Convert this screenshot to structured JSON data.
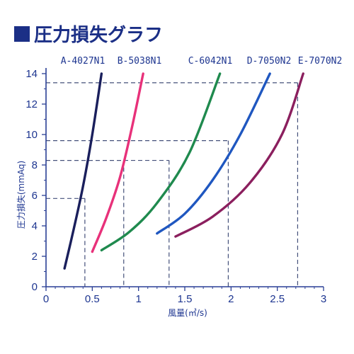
{
  "chart_data": {
    "type": "line",
    "title": "圧力損失グラフ",
    "xlabel": "風量(㎥/s)",
    "ylabel": "圧力損失(mmAq)",
    "xlim": [
      0,
      3
    ],
    "ylim": [
      0,
      14
    ],
    "x_ticks": [
      "0",
      "0.5",
      "1",
      "1.5",
      "2",
      "2.5",
      "3"
    ],
    "y_ticks": [
      "0",
      "2",
      "4",
      "6",
      "8",
      "10",
      "12",
      "14"
    ],
    "grid": false,
    "colors": {
      "title_square": "#1b2f86",
      "axis": "#2a3f95",
      "text": "#1d3590",
      "reference_lines": "#44507a"
    },
    "series": [
      {
        "name": "A-4027N1",
        "color": "#1a1f5c",
        "points": [
          [
            0.2,
            1.2
          ],
          [
            0.3,
            3.8
          ],
          [
            0.4,
            6.6
          ],
          [
            0.5,
            10.0
          ],
          [
            0.6,
            14.0
          ]
        ]
      },
      {
        "name": "B-5038N1",
        "color": "#e8317a",
        "points": [
          [
            0.5,
            2.3
          ],
          [
            0.65,
            4.5
          ],
          [
            0.8,
            7.2
          ],
          [
            0.93,
            10.5
          ],
          [
            1.05,
            14.0
          ]
        ]
      },
      {
        "name": "C-6042N1",
        "color": "#1f8a4e",
        "points": [
          [
            0.6,
            2.4
          ],
          [
            0.9,
            3.6
          ],
          [
            1.2,
            5.5
          ],
          [
            1.55,
            8.8
          ],
          [
            1.88,
            14.0
          ]
        ]
      },
      {
        "name": "D-7050N2",
        "color": "#1f57c0",
        "points": [
          [
            1.2,
            3.5
          ],
          [
            1.5,
            4.8
          ],
          [
            1.8,
            7.0
          ],
          [
            2.1,
            10.0
          ],
          [
            2.42,
            14.0
          ]
        ]
      },
      {
        "name": "E-7070N2",
        "color": "#8b1f5e",
        "points": [
          [
            1.4,
            3.3
          ],
          [
            1.8,
            4.6
          ],
          [
            2.2,
            6.8
          ],
          [
            2.55,
            10.0
          ],
          [
            2.78,
            14.0
          ]
        ]
      }
    ],
    "reference_lines": [
      {
        "x": 0.42,
        "y": 5.8
      },
      {
        "x": 0.84,
        "y": 8.3
      },
      {
        "x": 1.33,
        "y": 8.3
      },
      {
        "x": 1.97,
        "y": 9.6
      },
      {
        "x": 2.72,
        "y": 13.4
      }
    ]
  }
}
